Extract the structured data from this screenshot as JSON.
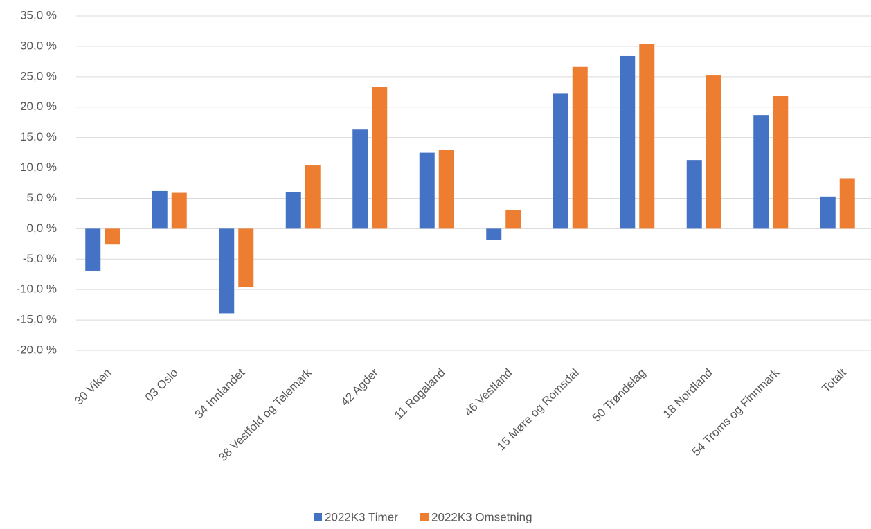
{
  "chart_data": {
    "type": "bar",
    "categories": [
      "30 Viken",
      "03 Oslo",
      "34 Innlandet",
      "38 Vestfold og Telemark",
      "42 Agder",
      "11 Rogaland",
      "46 Vestland",
      "15 Møre og Romsdal",
      "50 Trøndelag",
      "18 Nordland",
      "54 Troms og Finnmark",
      "Totalt"
    ],
    "series": [
      {
        "name": "2022K3 Timer",
        "color": "#4472c4",
        "values": [
          -6.9,
          6.2,
          -13.9,
          6.0,
          16.3,
          12.5,
          -1.8,
          22.2,
          28.4,
          11.3,
          18.7,
          5.3
        ]
      },
      {
        "name": "2022K3 Omsetning",
        "color": "#ed7d31",
        "values": [
          -2.6,
          5.9,
          -9.6,
          10.4,
          23.3,
          13.0,
          3.0,
          26.6,
          30.4,
          25.2,
          21.9,
          8.3
        ]
      }
    ],
    "ylim": [
      -20,
      35
    ],
    "yticks": [
      {
        "value": -20,
        "label": "-20,0 %"
      },
      {
        "value": -15,
        "label": "-15,0 %"
      },
      {
        "value": -10,
        "label": "-10,0 %"
      },
      {
        "value": -5,
        "label": "-5,0 %"
      },
      {
        "value": 0,
        "label": "0,0 %"
      },
      {
        "value": 5,
        "label": "5,0 %"
      },
      {
        "value": 10,
        "label": "10,0 %"
      },
      {
        "value": 15,
        "label": "15,0 %"
      },
      {
        "value": 20,
        "label": "20,0 %"
      },
      {
        "value": 25,
        "label": "25,0 %"
      },
      {
        "value": 30,
        "label": "30,0 %"
      },
      {
        "value": 35,
        "label": "35,0 %"
      }
    ],
    "grid": true,
    "legend": "bottom"
  }
}
